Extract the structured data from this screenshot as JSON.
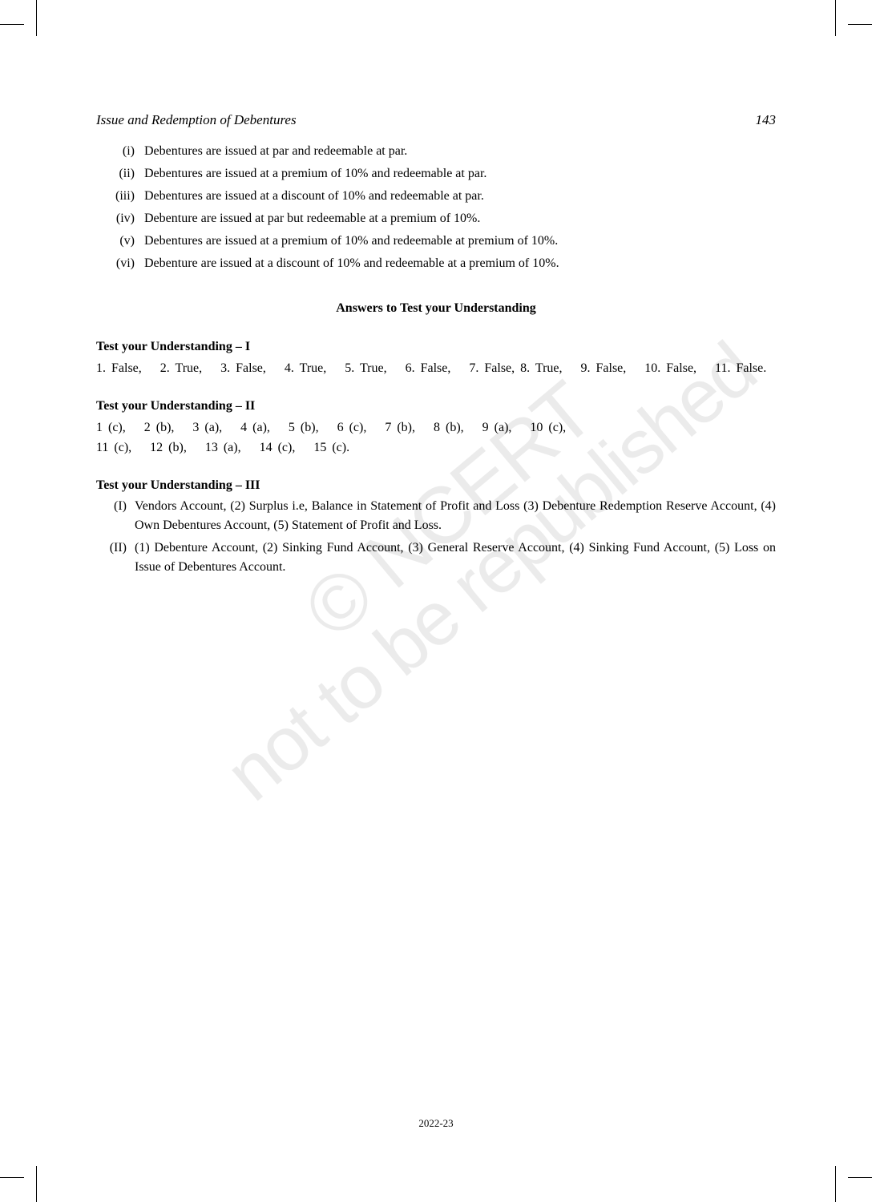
{
  "header": {
    "chapter_title": "Issue and Redemption of Debentures",
    "page_number": "143"
  },
  "roman_items": [
    {
      "marker": "(i)",
      "text": "Debentures are issued at par and redeemable at par."
    },
    {
      "marker": "(ii)",
      "text": "Debentures are issued at a premium of 10% and redeemable at par."
    },
    {
      "marker": "(iii)",
      "text": "Debentures are issued at a discount of 10% and redeemable at par."
    },
    {
      "marker": "(iv)",
      "text": "Debenture are issued at par but redeemable at a premium of 10%."
    },
    {
      "marker": "(v)",
      "text": "Debentures are issued at a premium of 10% and redeemable at premium of 10%."
    },
    {
      "marker": "(vi)",
      "text": "Debenture are issued at a discount of 10% and redeemable at a premium of 10%."
    }
  ],
  "section_heading": "Answers to Test your Understanding",
  "test1": {
    "heading": "Test your Understanding – I",
    "answers": "1. False,  2. True,  3. False,  4. True,  5. True,  6. False,  7. False, 8. True,  9. False,  10. False,  11. False."
  },
  "test2": {
    "heading": "Test your Understanding – II",
    "answers_line1": "1 (c),  2 (b),  3 (a),  4 (a),  5 (b),  6 (c),  7 (b),  8 (b),  9 (a),  10 (c),",
    "answers_line2": "11 (c),  12 (b),  13 (a),  14 (c),  15 (c)."
  },
  "test3": {
    "heading": "Test your Understanding – III",
    "items": [
      {
        "marker": "(I)",
        "text": "Vendors Account, (2) Surplus i.e, Balance in Statement of Profit and Loss (3) Debenture Redemption Reserve Account, (4) Own Debentures Account, (5) Statement of Profit and Loss."
      },
      {
        "marker": "(II)",
        "text": "(1) Debenture Account, (2) Sinking Fund Account, (3) General Reserve Account, (4) Sinking Fund Account, (5) Loss on Issue of Debentures Account."
      }
    ]
  },
  "watermarks": {
    "ncert": "© NCERT",
    "republished": "not to be republished"
  },
  "footer": {
    "year": "2022-23"
  },
  "styling": {
    "font_family": "Georgia, Times New Roman, serif",
    "text_color": "#000000",
    "background_color": "#ffffff",
    "watermark_color": "rgba(0, 0, 0, 0.08)",
    "body_font_size": 16,
    "header_font_size": 17
  }
}
